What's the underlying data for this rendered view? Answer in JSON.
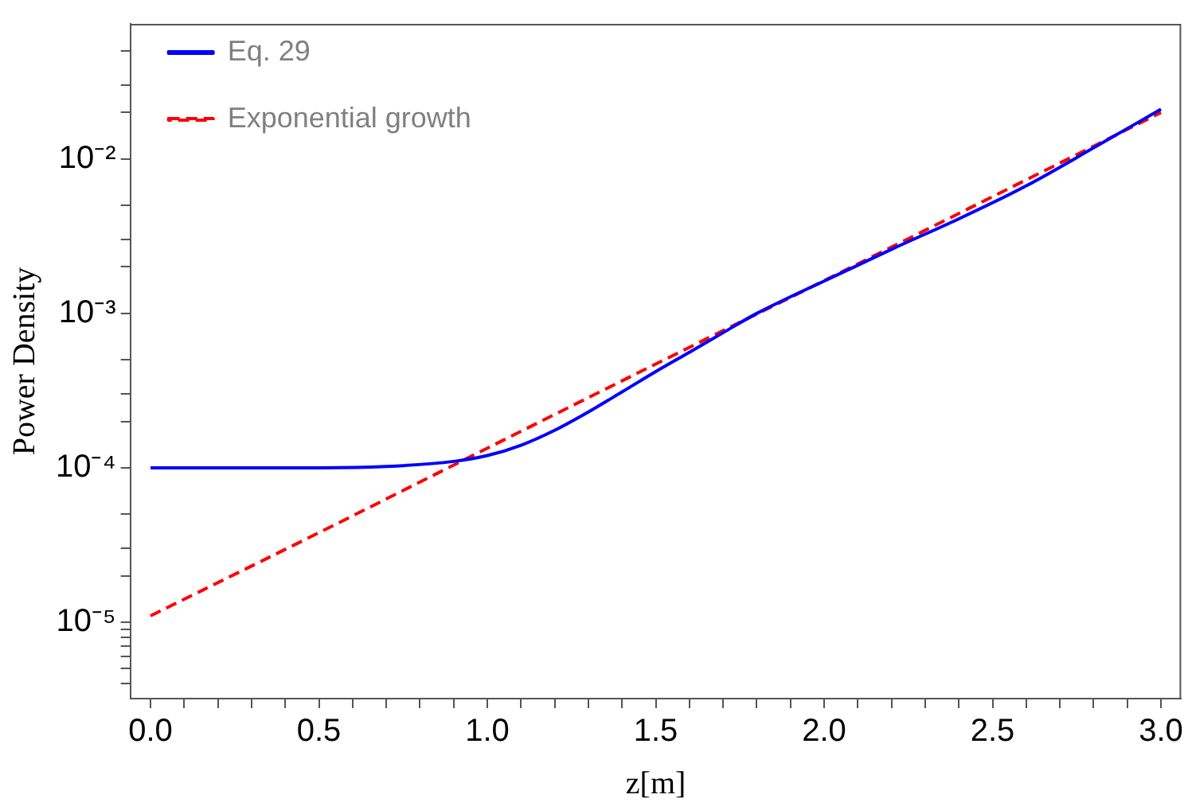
{
  "chart_data": {
    "type": "line",
    "xlabel": "z[m]",
    "ylabel": "Power Density",
    "log": "y",
    "legend": "top left",
    "marker": "none",
    "xlim": [
      -0.06,
      3.06
    ],
    "xticks": [
      {
        "value": 0,
        "label": "0.0"
      },
      {
        "value": 0.1,
        "label": null
      },
      {
        "value": 0.2,
        "label": null
      },
      {
        "value": 0.3,
        "label": null
      },
      {
        "value": 0.4,
        "label": null
      },
      {
        "value": 0.5,
        "label": "0.5"
      },
      {
        "value": 0.6,
        "label": null
      },
      {
        "value": 0.7,
        "label": null
      },
      {
        "value": 0.8,
        "label": null
      },
      {
        "value": 0.9,
        "label": null
      },
      {
        "value": 1,
        "label": "1.0"
      },
      {
        "value": 1.1,
        "label": null
      },
      {
        "value": 1.2,
        "label": null
      },
      {
        "value": 1.3,
        "label": null
      },
      {
        "value": 1.4,
        "label": null
      },
      {
        "value": 1.5,
        "label": "1.5"
      },
      {
        "value": 1.6,
        "label": null
      },
      {
        "value": 1.7,
        "label": null
      },
      {
        "value": 1.8,
        "label": null
      },
      {
        "value": 1.9,
        "label": null
      },
      {
        "value": 2,
        "label": "2.0"
      },
      {
        "value": 2.1,
        "label": null
      },
      {
        "value": 2.2,
        "label": null
      },
      {
        "value": 2.3,
        "label": null
      },
      {
        "value": 2.4,
        "label": null
      },
      {
        "value": 2.5,
        "label": "2.5"
      },
      {
        "value": 2.6,
        "label": null
      },
      {
        "value": 2.7,
        "label": null
      },
      {
        "value": 2.8,
        "label": null
      },
      {
        "value": 2.9,
        "label": null
      },
      {
        "value": 3,
        "label": "3.0"
      }
    ],
    "ylim": [
      3.2e-06,
      0.075
    ],
    "yticks": [
      {
        "value": 4e-06,
        "label": null
      },
      {
        "value": 5e-06,
        "label": null
      },
      {
        "value": 6e-06,
        "label": null
      },
      {
        "value": 7e-06,
        "label": null
      },
      {
        "value": 8e-06,
        "label": null
      },
      {
        "value": 9e-06,
        "label": null
      },
      {
        "value": 1e-05,
        "label": "10⁻⁵"
      },
      {
        "value": 2e-05,
        "label": null
      },
      {
        "value": 3e-05,
        "label": null
      },
      {
        "value": 5e-05,
        "label": null
      },
      {
        "value": 0.0001,
        "label": "10⁻⁴"
      },
      {
        "value": 0.0002,
        "label": null
      },
      {
        "value": 0.0003,
        "label": null
      },
      {
        "value": 0.0005,
        "label": null
      },
      {
        "value": 0.001,
        "label": "10⁻³"
      },
      {
        "value": 0.002,
        "label": null
      },
      {
        "value": 0.003,
        "label": null
      },
      {
        "value": 0.005,
        "label": null
      },
      {
        "value": 0.01,
        "label": "10⁻²"
      },
      {
        "value": 0.02,
        "label": null
      },
      {
        "value": 0.03,
        "label": null
      },
      {
        "value": 0.05,
        "label": null
      }
    ],
    "series": [
      {
        "name": "Eq. 29",
        "color": "#0000ff",
        "line_style": "solid",
        "x": [
          0,
          0.5,
          0.7,
          0.9,
          1.0,
          1.1,
          1.2,
          1.3,
          1.4,
          1.5,
          1.6,
          1.7,
          1.8,
          1.9,
          2.0,
          2.1,
          2.2,
          2.4,
          2.6,
          2.8,
          3.0
        ],
        "values": [
          0.0001,
          0.0001,
          0.000102,
          0.00011,
          0.00012,
          0.00014,
          0.000175,
          0.00023,
          0.00031,
          0.00042,
          0.00056,
          0.00075,
          0.001,
          0.00128,
          0.00162,
          0.00205,
          0.0026,
          0.0041,
          0.0067,
          0.0118,
          0.021
        ]
      },
      {
        "name": "Exponential growth",
        "color": "#ff0000",
        "line_style": "dashed",
        "x": [
          0,
          0.5,
          1,
          1.5,
          2,
          2.5,
          3
        ],
        "values": [
          1.1e-05,
          3.8e-05,
          0.000134,
          0.00047,
          0.00163,
          0.0057,
          0.02
        ]
      }
    ]
  }
}
